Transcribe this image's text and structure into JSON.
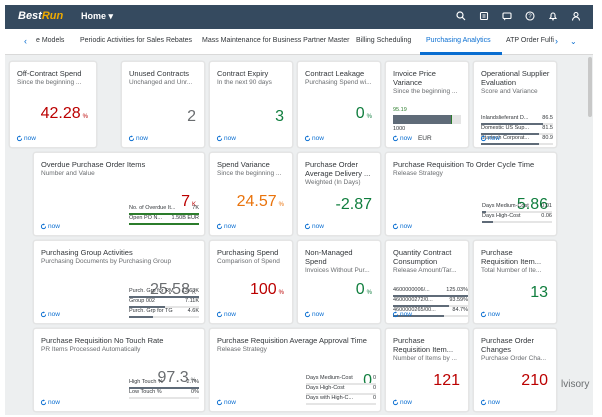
{
  "shell": {
    "logo_best": "Best",
    "logo_run": "Run",
    "home_label": "Home ▾",
    "icons": [
      "search-icon",
      "history-icon",
      "notification-icon",
      "help-icon",
      "bell-icon",
      "user-icon"
    ]
  },
  "tabs": {
    "items": [
      "e Models",
      "Periodic Activities for Sales Rebates",
      "Mass Maintenance for Business Partner Master",
      "Billing Scheduling",
      "Purchasing Analytics",
      "ATP Order Fulfi"
    ],
    "active_index": 4
  },
  "refresh": "now",
  "tiles": [
    {
      "id": "off-contract-spend",
      "title": "Off-Contract Spend",
      "sub": "Since the beginning ...",
      "value": "42.28",
      "unit": "%",
      "color": "#bb0000"
    },
    {
      "id": "unused-contracts",
      "title": "Unused Contracts",
      "sub": "Unchanged and Unr...",
      "value": "2",
      "unit": "",
      "color": "#6a6d70"
    },
    {
      "id": "contract-expiry",
      "title": "Contract Expiry",
      "sub": "In the next 90 days",
      "value": "3",
      "unit": "",
      "color": "#107e3e"
    },
    {
      "id": "contract-leakage",
      "title": "Contract Leakage",
      "sub": "Purchasing Spend wi...",
      "value": "0",
      "unit": "%",
      "color": "#107e3e"
    },
    {
      "id": "invoice-price-variance",
      "title": "Invoice Price Variance",
      "sub": "Since the beginning ...",
      "gauge_value": "95.19",
      "gauge_min": "1000",
      "gauge_fill_fraction": 0.85,
      "currency": "EUR"
    },
    {
      "id": "operational-supplier-evaluation",
      "title": "Operational Supplier Evaluation",
      "sub": "Score and Variance",
      "rows": [
        {
          "label": "Inlandslieferant D...",
          "value": "86.5",
          "fraction": 0.86
        },
        {
          "label": "Domestic US Sup...",
          "value": "81.5",
          "fraction": 0.81
        },
        {
          "label": "Startech Corporat...",
          "value": "80.9",
          "fraction": 0.8
        }
      ]
    },
    {
      "id": "overdue-purchase-order-items",
      "title": "Overdue Purchase Order Items",
      "sub": "Number and Value",
      "value": "7",
      "unit": "K",
      "color": "#bb0000",
      "rows": [
        {
          "label": "No. of Overdue It...",
          "value": "7K",
          "fraction": 1.0
        },
        {
          "label": "Open PO N...",
          "value": "1.50B EUR",
          "fraction": 1.0
        }
      ]
    },
    {
      "id": "spend-variance",
      "title": "Spend Variance",
      "sub": "Since the beginning ...",
      "value": "24.57",
      "unit": "%",
      "color": "#e9730c"
    },
    {
      "id": "purchase-order-average-delivery",
      "title": "Purchase Order Average Delivery ...",
      "sub": "Weighted (In Days)",
      "value": "-2.87",
      "unit": "",
      "color": "#107e3e"
    },
    {
      "id": "pr-to-order-cycle-time",
      "title": "Purchase Requisition To Order Cycle Time",
      "sub": "Release Strategy",
      "value": "5.86",
      "unit": "",
      "color": "#107e3e",
      "rows": [
        {
          "label": "Days Medium-Cost",
          "value": "0.01",
          "fraction": 0.05
        },
        {
          "label": "Days High-Cost",
          "value": "0.06",
          "fraction": 0.15
        }
      ]
    },
    {
      "id": "purchasing-group-activities",
      "title": "Purchasing Group Activities",
      "sub": "Purchasing Documents by Purchasing Group",
      "value": "25.58",
      "unit": "K",
      "color": "#6a6d70",
      "rows": [
        {
          "label": "Purch. Grp for RM",
          "value": "13.63K",
          "fraction": 1.0
        },
        {
          "label": "Group 002",
          "value": "7.11K",
          "fraction": 0.52
        },
        {
          "label": "Purch. Grp for TG",
          "value": "4.6K",
          "fraction": 0.34
        }
      ]
    },
    {
      "id": "purchasing-spend",
      "title": "Purchasing Spend",
      "sub": "Comparison of Spend",
      "value": "100",
      "unit": "%",
      "color": "#bb0000"
    },
    {
      "id": "non-managed-spend",
      "title": "Non-Managed Spend",
      "sub": "Invoices Without Pur...",
      "value": "0",
      "unit": "%",
      "color": "#107e3e"
    },
    {
      "id": "quantity-contract-consumption",
      "title": "Quantity Contract Consumption",
      "sub": "Release Amount/Tar...",
      "rows": [
        {
          "label": "4600000006/...",
          "value": "125.03%",
          "fraction": 1.0
        },
        {
          "label": "4600000272/0...",
          "value": "93.59%",
          "fraction": 0.75
        },
        {
          "label": "4600000265/00...",
          "value": "84.7%",
          "fraction": 0.68
        }
      ]
    },
    {
      "id": "purchase-requisition-items-1",
      "title": "Purchase Requisition Item...",
      "sub": "Total Number of Ite...",
      "value": "13",
      "unit": "",
      "color": "#107e3e"
    },
    {
      "id": "pr-no-touch-rate",
      "title": "Purchase Requisition No Touch Rate",
      "sub": "PR Items Processed Automatically",
      "value": "97.3",
      "unit": "%",
      "color": "#6a6d70",
      "rows": [
        {
          "label": "High Touch %",
          "value": "2.7%",
          "fraction": 1.0
        },
        {
          "label": "Low Touch %",
          "value": "0%",
          "fraction": 0.0
        }
      ]
    },
    {
      "id": "pr-average-approval-time",
      "title": "Purchase Requisition Average Approval Time",
      "sub": "Release Strategy",
      "value": "0",
      "unit": "",
      "color": "#107e3e",
      "rows": [
        {
          "label": "Days Medium-Cost",
          "value": "0",
          "fraction": 0.0
        },
        {
          "label": "Days High-Cost",
          "value": "0",
          "fraction": 0.0
        },
        {
          "label": "Days with High-C...",
          "value": "0",
          "fraction": 0.0
        }
      ]
    },
    {
      "id": "purchase-requisition-items-2",
      "title": "Purchase Requisition Item...",
      "sub": "Number of Items by ...",
      "value": "121",
      "unit": "",
      "color": "#bb0000"
    },
    {
      "id": "purchase-order-changes",
      "title": "Purchase Order Changes",
      "sub": "Purchase Order Cha...",
      "value": "210",
      "unit": "",
      "color": "#bb0000"
    }
  ],
  "overflow_text": "lvisory"
}
